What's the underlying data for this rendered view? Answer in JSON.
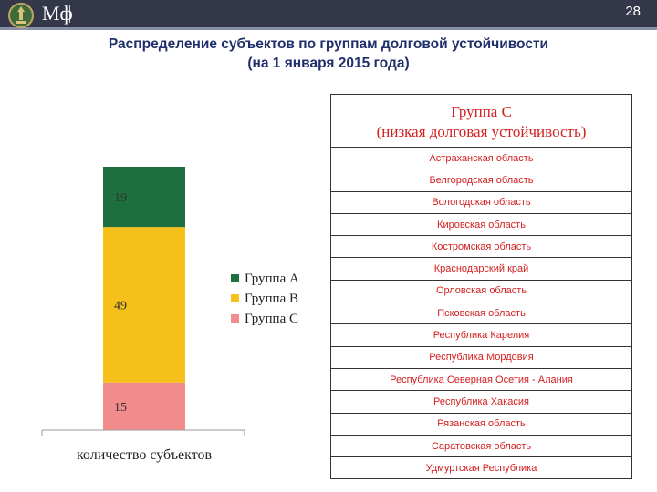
{
  "header": {
    "logo_text": "Мф",
    "page_number": "28"
  },
  "title": {
    "line1": "Распределение субъектов по группам долговой устойчивости",
    "line2": "(на 1 января 2015 года)"
  },
  "colors": {
    "group_a": "#1e6f3e",
    "group_b": "#f5c11a",
    "group_c": "#f28b8b",
    "table_text": "#d42020",
    "title": "#1f2f6b"
  },
  "chart_data": {
    "type": "bar",
    "stacked": true,
    "categories": [
      "количество субъектов"
    ],
    "series": [
      {
        "name": "Группа A",
        "values": [
          19
        ],
        "color": "#1e6f3e"
      },
      {
        "name": "Группа B",
        "values": [
          49
        ],
        "color": "#f5c11a"
      },
      {
        "name": "Группа C",
        "values": [
          15
        ],
        "color": "#f28b8b"
      }
    ],
    "xlabel": "количество субъектов",
    "ylabel": "",
    "legend_position": "right",
    "grid": false
  },
  "table": {
    "header_line1": "Группа С",
    "header_line2": "(низкая долговая устойчивость)",
    "rows": [
      "Астраханская область",
      "Белгородская область",
      "Вологодская область",
      "Кировская область",
      "Костромская область",
      "Краснодарский край",
      "Орловская область",
      "Псковская область",
      "Республика Карелия",
      "Республика Мордовия",
      "Республика Северная Осетия - Алания",
      "Республика Хакасия",
      "Рязанская область",
      "Саратовская область",
      "Удмуртская Республика"
    ]
  }
}
